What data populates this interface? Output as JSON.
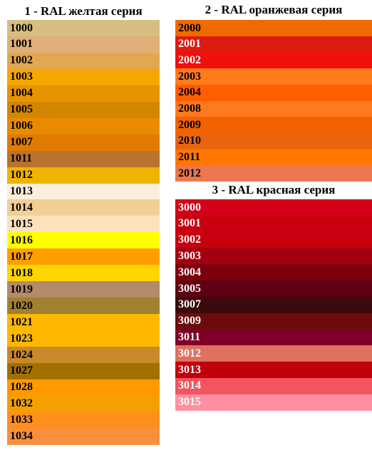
{
  "sections": [
    {
      "title": "1 - RAL желтая серия",
      "rows": [
        {
          "code": "1000",
          "color": "#d7be80"
        },
        {
          "code": "1001",
          "color": "#dfb07a"
        },
        {
          "code": "1002",
          "color": "#e2a850"
        },
        {
          "code": "1003",
          "color": "#f7a600"
        },
        {
          "code": "1004",
          "color": "#e69400"
        },
        {
          "code": "1005",
          "color": "#d58600"
        },
        {
          "code": "1006",
          "color": "#e98b00"
        },
        {
          "code": "1007",
          "color": "#e17a00"
        },
        {
          "code": "1011",
          "color": "#b8732e"
        },
        {
          "code": "1012",
          "color": "#f0b400"
        },
        {
          "code": "1013",
          "color": "#fbeedc"
        },
        {
          "code": "1014",
          "color": "#f2cf96"
        },
        {
          "code": "1015",
          "color": "#fbe2bb"
        },
        {
          "code": "1016",
          "color": "#ffff00"
        },
        {
          "code": "1017",
          "color": "#ff9e00"
        },
        {
          "code": "1018",
          "color": "#ffd500"
        },
        {
          "code": "1019",
          "color": "#b48a6a"
        },
        {
          "code": "1020",
          "color": "#a0812f"
        },
        {
          "code": "1021",
          "color": "#ffb800"
        },
        {
          "code": "1023",
          "color": "#ffb800"
        },
        {
          "code": "1024",
          "color": "#c8892a"
        },
        {
          "code": "1027",
          "color": "#a27000"
        },
        {
          "code": "1028",
          "color": "#ff9b00"
        },
        {
          "code": "1032",
          "color": "#f5a000"
        },
        {
          "code": "1033",
          "color": "#ff8f1c"
        },
        {
          "code": "1034",
          "color": "#f88f3f"
        }
      ]
    },
    {
      "title": "2 - RAL оранжевая серия",
      "rows": [
        {
          "code": "2000",
          "color": "#f06a00"
        },
        {
          "code": "2001",
          "color": "#dd1b10"
        },
        {
          "code": "2002",
          "color": "#f0100c"
        },
        {
          "code": "2003",
          "color": "#ff7b1c"
        },
        {
          "code": "2004",
          "color": "#ff5e00"
        },
        {
          "code": "2008",
          "color": "#ff7a1e"
        },
        {
          "code": "2009",
          "color": "#f26200"
        },
        {
          "code": "2010",
          "color": "#e8650e"
        },
        {
          "code": "2011",
          "color": "#ff7700"
        },
        {
          "code": "2012",
          "color": "#ec7650"
        }
      ]
    },
    {
      "title": "3 - RAL красная серия",
      "rows": [
        {
          "code": "3000",
          "color": "#d20018"
        },
        {
          "code": "3001",
          "color": "#c8000f"
        },
        {
          "code": "3002",
          "color": "#c8000d"
        },
        {
          "code": "3003",
          "color": "#a50011"
        },
        {
          "code": "3004",
          "color": "#7c000b"
        },
        {
          "code": "3005",
          "color": "#5e0012"
        },
        {
          "code": "3007",
          "color": "#3c0a0a"
        },
        {
          "code": "3009",
          "color": "#6d0b0b"
        },
        {
          "code": "3011",
          "color": "#7e0026"
        },
        {
          "code": "3012",
          "color": "#e07060"
        },
        {
          "code": "3013",
          "color": "#c0000a"
        },
        {
          "code": "3014",
          "color": "#f05560"
        },
        {
          "code": "3015",
          "color": "#ff8fa0"
        }
      ]
    }
  ]
}
